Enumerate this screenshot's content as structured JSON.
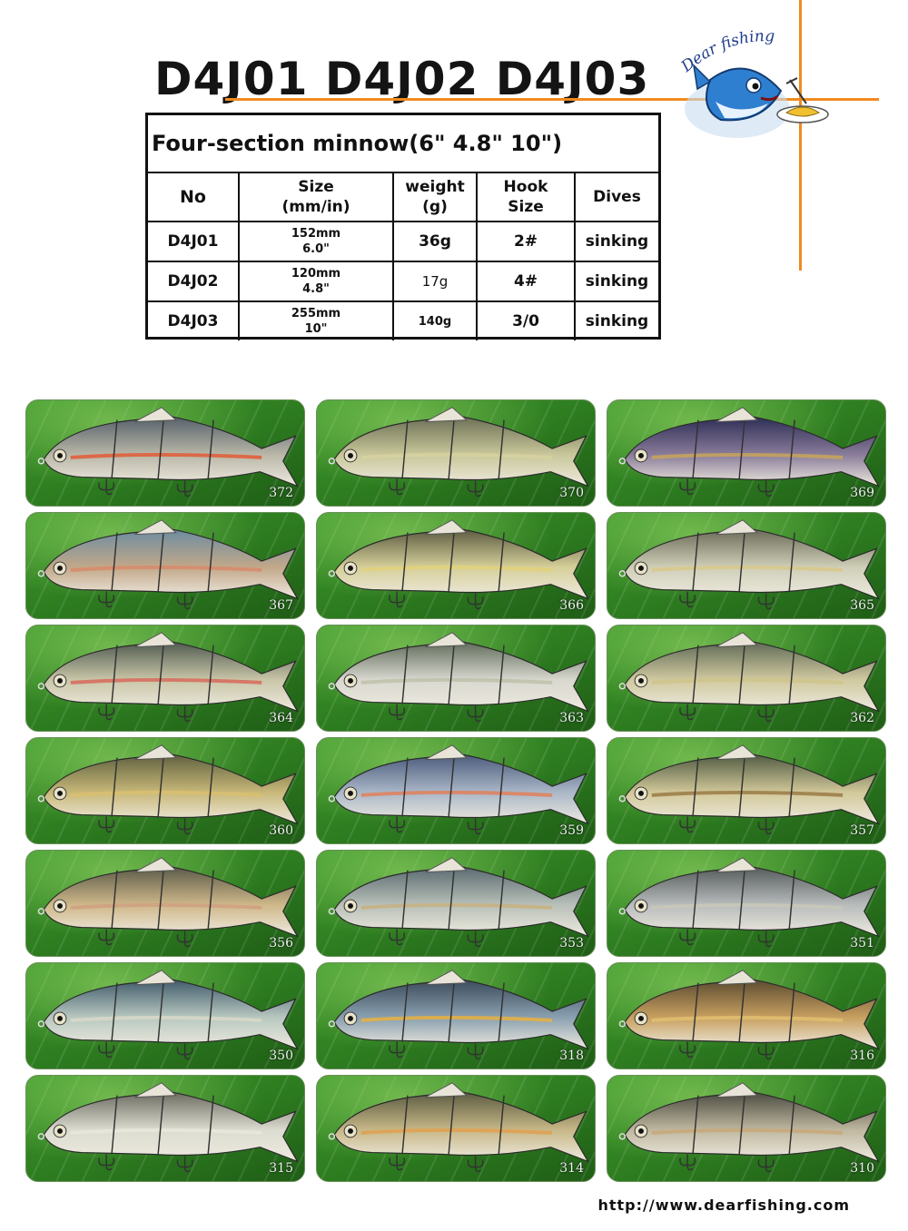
{
  "header": {
    "title": "D4J01 D4J02 D4J03"
  },
  "logo": {
    "text": "Dear fishing",
    "icon": "cartoon-fish-chef-logo"
  },
  "spec_table": {
    "title": "Four-section minnow(6\" 4.8\" 10\")",
    "columns": [
      {
        "line1": "No",
        "line2": ""
      },
      {
        "line1": "Size",
        "line2": "(mm/in)"
      },
      {
        "line1": "weight",
        "line2": "(g)"
      },
      {
        "line1": "Hook",
        "line2": "Size"
      },
      {
        "line1": "Dives",
        "line2": ""
      }
    ],
    "rows": [
      {
        "no": "D4J01",
        "size_mm": "152mm",
        "size_in": "6.0\"",
        "weight": "36g",
        "hook": "2#",
        "dives": "sinking"
      },
      {
        "no": "D4J02",
        "size_mm": "120mm",
        "size_in": "4.8\"",
        "weight": "17g",
        "hook": "4#",
        "dives": "sinking"
      },
      {
        "no": "D4J03",
        "size_mm": "255mm",
        "size_in": "10\"",
        "weight": "140g",
        "hook": "3/0",
        "dives": "sinking"
      }
    ]
  },
  "lures": [
    {
      "code": "372",
      "body": "#b9b7a8",
      "back": "#55606a",
      "stripe": "#e25a35"
    },
    {
      "code": "370",
      "body": "#c9c79a",
      "back": "#6b6f55",
      "stripe": "#d6d2a0"
    },
    {
      "code": "369",
      "body": "#8a7c9a",
      "back": "#2b2c55",
      "stripe": "#c8a55a"
    },
    {
      "code": "367",
      "body": "#c2a88a",
      "back": "#6b8ca0",
      "stripe": "#d88a6a"
    },
    {
      "code": "366",
      "body": "#d6cf9a",
      "back": "#5a5a40",
      "stripe": "#e2d27a"
    },
    {
      "code": "365",
      "body": "#cfcfb8",
      "back": "#6a6a58",
      "stripe": "#d9c88a"
    },
    {
      "code": "364",
      "body": "#c9c6a8",
      "back": "#4f5a50",
      "stripe": "#d86a5a"
    },
    {
      "code": "363",
      "body": "#d8d8cf",
      "back": "#5f6b5a",
      "stripe": "#bfbfaa"
    },
    {
      "code": "362",
      "body": "#d0c9a0",
      "back": "#606a55",
      "stripe": "#cfc48a"
    },
    {
      "code": "360",
      "body": "#c8b878",
      "back": "#5f6040",
      "stripe": "#d9c070"
    },
    {
      "code": "359",
      "body": "#aab7c8",
      "back": "#4a5a7a",
      "stripe": "#e0805a"
    },
    {
      "code": "357",
      "body": "#d2c89a",
      "back": "#4f5a40",
      "stripe": "#9a7a45"
    },
    {
      "code": "356",
      "body": "#cfb88a",
      "back": "#5a5a48",
      "stripe": "#d0a080"
    },
    {
      "code": "353",
      "body": "#b8c0b8",
      "back": "#5a6a70",
      "stripe": "#c8b080"
    },
    {
      "code": "351",
      "body": "#b8bcbc",
      "back": "#555a5a",
      "stripe": "#c8c8b8"
    },
    {
      "code": "350",
      "body": "#b8c8c0",
      "back": "#3f5a6a",
      "stripe": "#d8d8c8"
    },
    {
      "code": "318",
      "body": "#8aa0b0",
      "back": "#3a4a5a",
      "stripe": "#e8b040"
    },
    {
      "code": "316",
      "body": "#c8a060",
      "back": "#5a4a30",
      "stripe": "#e0c070"
    },
    {
      "code": "315",
      "body": "#dcdcd0",
      "back": "#6a6a60",
      "stripe": "#e8e8dc"
    },
    {
      "code": "314",
      "body": "#c8b888",
      "back": "#5a5a40",
      "stripe": "#e0a050"
    },
    {
      "code": "310",
      "body": "#c0b8a0",
      "back": "#4a4a40",
      "stripe": "#c8a878"
    }
  ],
  "footer": {
    "url": "http://www.dearfishing.com"
  },
  "colors": {
    "accent_line": "#f08a1e",
    "background_leaf": "#2c7a1f"
  }
}
